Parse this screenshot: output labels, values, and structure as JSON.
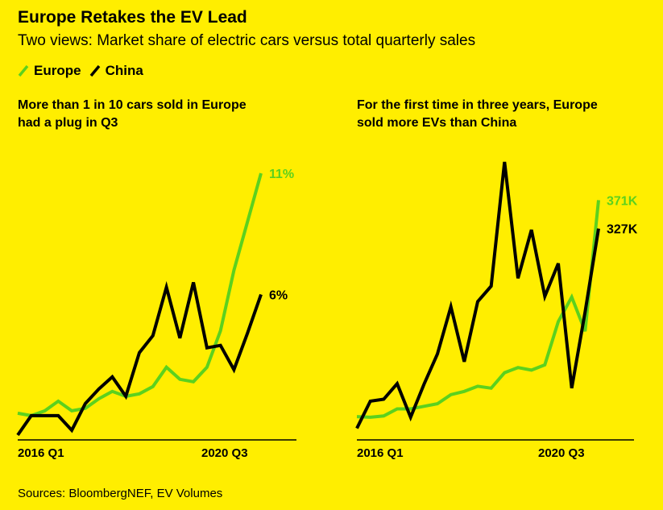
{
  "header": {
    "title": "Europe Retakes the EV Lead",
    "subtitle": "Two views: Market share of electric cars versus total quarterly sales"
  },
  "legend": [
    {
      "name": "Europe",
      "color": "#5cd11e"
    },
    {
      "name": "China",
      "color": "#000000"
    }
  ],
  "colors": {
    "background": "#ffee00",
    "europe": "#5cd11e",
    "china": "#000000"
  },
  "footer": {
    "source": "Sources: BloombergNEF, EV Volumes"
  },
  "chart_data": [
    {
      "type": "line",
      "title": "More than 1 in 10 cars sold in Europe had a plug in Q3",
      "title_lines": [
        "More than 1 in 10 cars sold in Europe",
        "had a plug in Q3"
      ],
      "x_tick_labels": [
        "2016 Q1",
        "2020 Q3"
      ],
      "ylim": [
        0,
        12
      ],
      "unit": "%",
      "grid": false,
      "end_labels": {
        "Europe": "11%",
        "China": "6%"
      },
      "series": [
        {
          "name": "Europe",
          "color": "#5cd11e",
          "values": [
            1.1,
            1.0,
            1.2,
            1.6,
            1.2,
            1.3,
            1.7,
            2.0,
            1.8,
            1.9,
            2.2,
            3.0,
            2.5,
            2.4,
            3.0,
            4.5,
            7.0,
            9.0,
            11.0
          ]
        },
        {
          "name": "China",
          "color": "#000000",
          "values": [
            0.2,
            1.0,
            1.0,
            1.0,
            0.4,
            1.5,
            2.1,
            2.6,
            1.8,
            3.6,
            4.3,
            6.3,
            4.2,
            6.5,
            3.8,
            3.9,
            2.9,
            4.4,
            6.0
          ]
        }
      ]
    },
    {
      "type": "line",
      "title": "For the first time in three years, Europe sold more EVs than China",
      "title_lines": [
        "For the first time in three years, Europe",
        "sold more EVs than China"
      ],
      "x_tick_labels": [
        "2016 Q1",
        "2020 Q3"
      ],
      "ylim": [
        0,
        450
      ],
      "unit": "K",
      "grid": false,
      "end_labels": {
        "Europe": "371K",
        "China": "327K"
      },
      "series": [
        {
          "name": "Europe",
          "color": "#5cd11e",
          "values": [
            36,
            35,
            37,
            48,
            48,
            52,
            56,
            70,
            75,
            83,
            80,
            104,
            112,
            108,
            116,
            183,
            221,
            168,
            371
          ]
        },
        {
          "name": "China",
          "color": "#000000",
          "values": [
            18,
            60,
            63,
            87,
            35,
            86,
            133,
            206,
            121,
            214,
            238,
            430,
            250,
            325,
            222,
            273,
            80,
            198,
            327
          ]
        }
      ]
    }
  ]
}
